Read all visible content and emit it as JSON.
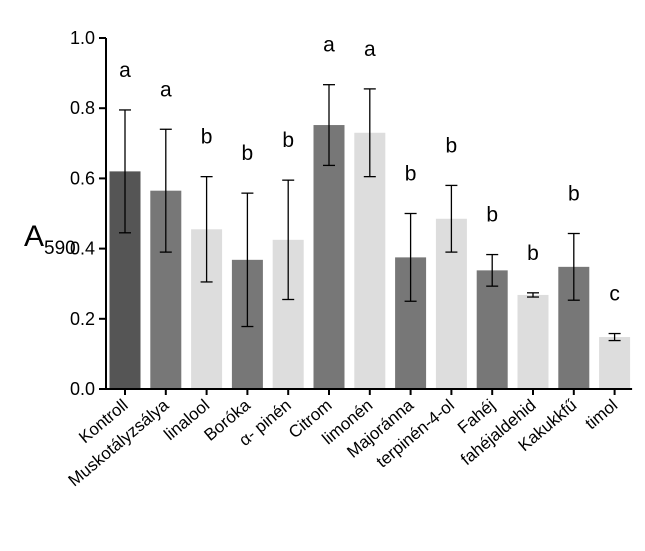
{
  "chart_data": {
    "type": "bar",
    "ylabel": "A",
    "ylabel_subscript": "590",
    "xlabel": "",
    "ylim": [
      0.0,
      1.0
    ],
    "yticks": [
      0.0,
      0.2,
      0.4,
      0.6,
      0.8,
      1.0
    ],
    "ytick_labels": [
      "0.0",
      "0.2",
      "0.4",
      "0.6",
      "0.8",
      "1.0"
    ],
    "categories": [
      "Kontroll",
      "Muskotályzsálya",
      "linalool",
      "Boróka",
      "α- pinén",
      "Citrom",
      "limonén",
      "Majoránna",
      "terpinén-4-ol",
      "Fahéj",
      "fahéjaldehid",
      "Kakukkfű",
      "timol"
    ],
    "values": [
      0.62,
      0.565,
      0.455,
      0.368,
      0.425,
      0.752,
      0.73,
      0.375,
      0.485,
      0.338,
      0.268,
      0.348,
      0.148
    ],
    "error": [
      0.175,
      0.175,
      0.15,
      0.19,
      0.17,
      0.115,
      0.125,
      0.125,
      0.095,
      0.045,
      0.006,
      0.095,
      0.01
    ],
    "significance_letters": [
      "a",
      "a",
      "b",
      "b",
      "b",
      "a",
      "a",
      "b",
      "b",
      "b",
      "b",
      "b",
      "c"
    ],
    "bar_colors": [
      "#555555",
      "#777777",
      "#dddddd",
      "#777777",
      "#dddddd",
      "#777777",
      "#dddddd",
      "#777777",
      "#dddddd",
      "#777777",
      "#dddddd",
      "#777777",
      "#dddddd"
    ],
    "grid": false,
    "legend": "none"
  }
}
